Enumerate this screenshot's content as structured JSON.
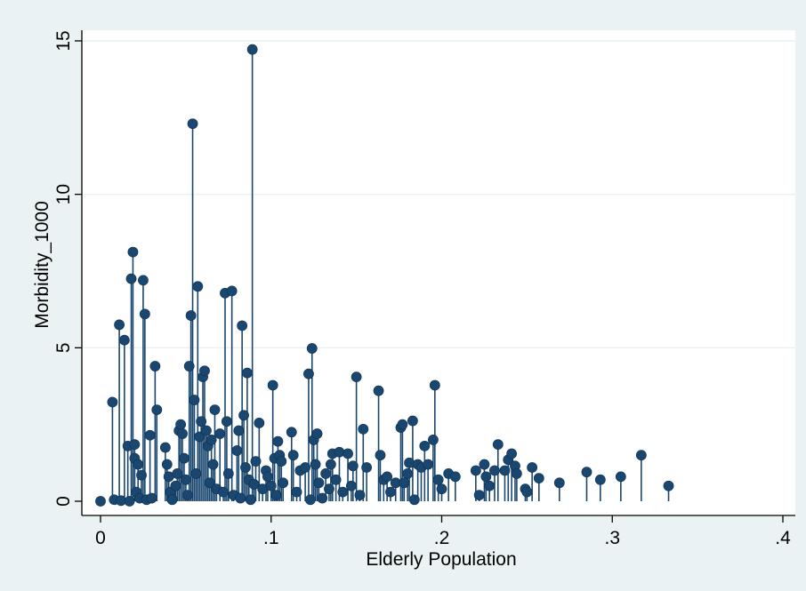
{
  "chart_data": {
    "type": "scatter",
    "style": "dropline",
    "title": "",
    "xlabel": "Elderly Population",
    "ylabel": "Morbidity_1000",
    "xlim": [
      0,
      0.4
    ],
    "ylim": [
      0,
      15
    ],
    "xticks": [
      {
        "value": 0,
        "label": "0"
      },
      {
        "value": 0.1,
        "label": ".1"
      },
      {
        "value": 0.2,
        "label": ".2"
      },
      {
        "value": 0.3,
        "label": ".3"
      },
      {
        "value": 0.4,
        "label": ".4"
      }
    ],
    "yticks": [
      {
        "value": 0,
        "label": "0"
      },
      {
        "value": 5,
        "label": "5"
      },
      {
        "value": 10,
        "label": "10"
      },
      {
        "value": 15,
        "label": "15"
      }
    ],
    "grid": true,
    "colors": {
      "marker": "#1a476f",
      "background": "#eaf2f3",
      "plot_background": "#ffffff",
      "grid": "#eaf2f3"
    },
    "points": [
      [
        0.0,
        0.0
      ],
      [
        0.007,
        3.23
      ],
      [
        0.008,
        0.05
      ],
      [
        0.011,
        5.75
      ],
      [
        0.012,
        0.02
      ],
      [
        0.014,
        5.25
      ],
      [
        0.016,
        1.8
      ],
      [
        0.017,
        0.0
      ],
      [
        0.018,
        7.25
      ],
      [
        0.019,
        8.12
      ],
      [
        0.02,
        1.85
      ],
      [
        0.02,
        1.4
      ],
      [
        0.021,
        0.3
      ],
      [
        0.022,
        1.2
      ],
      [
        0.023,
        0.1
      ],
      [
        0.024,
        0.85
      ],
      [
        0.025,
        7.2
      ],
      [
        0.026,
        6.1
      ],
      [
        0.027,
        0.05
      ],
      [
        0.029,
        2.15
      ],
      [
        0.03,
        0.1
      ],
      [
        0.032,
        4.4
      ],
      [
        0.033,
        2.98
      ],
      [
        0.038,
        1.75
      ],
      [
        0.039,
        1.2
      ],
      [
        0.04,
        0.8
      ],
      [
        0.041,
        0.3
      ],
      [
        0.042,
        0.05
      ],
      [
        0.044,
        0.5
      ],
      [
        0.045,
        0.9
      ],
      [
        0.046,
        2.3
      ],
      [
        0.047,
        2.5
      ],
      [
        0.048,
        2.2
      ],
      [
        0.049,
        1.4
      ],
      [
        0.05,
        0.7
      ],
      [
        0.051,
        0.2
      ],
      [
        0.052,
        4.4
      ],
      [
        0.053,
        6.05
      ],
      [
        0.054,
        12.3
      ],
      [
        0.055,
        3.3
      ],
      [
        0.056,
        0.9
      ],
      [
        0.057,
        7.0
      ],
      [
        0.058,
        2.1
      ],
      [
        0.059,
        2.6
      ],
      [
        0.06,
        4.05
      ],
      [
        0.061,
        4.25
      ],
      [
        0.062,
        2.3
      ],
      [
        0.063,
        1.8
      ],
      [
        0.064,
        0.6
      ],
      [
        0.065,
        2.0
      ],
      [
        0.066,
        1.2
      ],
      [
        0.067,
        2.98
      ],
      [
        0.068,
        0.4
      ],
      [
        0.07,
        2.2
      ],
      [
        0.072,
        0.3
      ],
      [
        0.073,
        6.78
      ],
      [
        0.074,
        2.6
      ],
      [
        0.075,
        0.9
      ],
      [
        0.077,
        6.85
      ],
      [
        0.078,
        0.2
      ],
      [
        0.08,
        1.65
      ],
      [
        0.081,
        2.3
      ],
      [
        0.082,
        0.1
      ],
      [
        0.083,
        5.72
      ],
      [
        0.084,
        2.8
      ],
      [
        0.085,
        1.1
      ],
      [
        0.086,
        4.18
      ],
      [
        0.087,
        0.7
      ],
      [
        0.088,
        0.05
      ],
      [
        0.089,
        14.72
      ],
      [
        0.09,
        0.55
      ],
      [
        0.091,
        1.3
      ],
      [
        0.093,
        2.55
      ],
      [
        0.095,
        0.4
      ],
      [
        0.097,
        1.0
      ],
      [
        0.098,
        0.8
      ],
      [
        0.1,
        0.5
      ],
      [
        0.101,
        3.78
      ],
      [
        0.102,
        1.4
      ],
      [
        0.103,
        0.2
      ],
      [
        0.104,
        1.95
      ],
      [
        0.105,
        1.5
      ],
      [
        0.106,
        1.3
      ],
      [
        0.107,
        0.6
      ],
      [
        0.112,
        2.25
      ],
      [
        0.113,
        1.5
      ],
      [
        0.115,
        0.3
      ],
      [
        0.117,
        1.0
      ],
      [
        0.12,
        1.1
      ],
      [
        0.122,
        4.15
      ],
      [
        0.123,
        0.05
      ],
      [
        0.124,
        4.98
      ],
      [
        0.125,
        2.0
      ],
      [
        0.126,
        1.2
      ],
      [
        0.127,
        2.2
      ],
      [
        0.128,
        0.6
      ],
      [
        0.13,
        0.1
      ],
      [
        0.132,
        0.9
      ],
      [
        0.134,
        0.4
      ],
      [
        0.135,
        1.2
      ],
      [
        0.136,
        1.55
      ],
      [
        0.138,
        0.7
      ],
      [
        0.14,
        1.6
      ],
      [
        0.142,
        0.3
      ],
      [
        0.145,
        1.55
      ],
      [
        0.147,
        0.5
      ],
      [
        0.148,
        1.15
      ],
      [
        0.15,
        4.05
      ],
      [
        0.152,
        0.2
      ],
      [
        0.154,
        2.35
      ],
      [
        0.156,
        1.1
      ],
      [
        0.163,
        3.6
      ],
      [
        0.164,
        1.5
      ],
      [
        0.166,
        0.7
      ],
      [
        0.168,
        0.8
      ],
      [
        0.17,
        0.3
      ],
      [
        0.173,
        0.6
      ],
      [
        0.176,
        2.4
      ],
      [
        0.177,
        2.5
      ],
      [
        0.178,
        0.6
      ],
      [
        0.18,
        0.9
      ],
      [
        0.181,
        1.25
      ],
      [
        0.183,
        2.62
      ],
      [
        0.184,
        0.05
      ],
      [
        0.186,
        1.2
      ],
      [
        0.188,
        1.1
      ],
      [
        0.19,
        1.8
      ],
      [
        0.192,
        1.2
      ],
      [
        0.195,
        2.0
      ],
      [
        0.196,
        3.78
      ],
      [
        0.198,
        0.7
      ],
      [
        0.2,
        0.4
      ],
      [
        0.204,
        0.9
      ],
      [
        0.208,
        0.8
      ],
      [
        0.22,
        1.0
      ],
      [
        0.222,
        0.2
      ],
      [
        0.225,
        1.2
      ],
      [
        0.226,
        0.8
      ],
      [
        0.228,
        0.5
      ],
      [
        0.231,
        1.0
      ],
      [
        0.233,
        1.85
      ],
      [
        0.237,
        1.0
      ],
      [
        0.239,
        1.35
      ],
      [
        0.241,
        1.55
      ],
      [
        0.243,
        1.15
      ],
      [
        0.244,
        0.9
      ],
      [
        0.249,
        0.4
      ],
      [
        0.25,
        0.3
      ],
      [
        0.253,
        1.1
      ],
      [
        0.257,
        0.75
      ],
      [
        0.269,
        0.6
      ],
      [
        0.285,
        0.95
      ],
      [
        0.293,
        0.7
      ],
      [
        0.305,
        0.8
      ],
      [
        0.317,
        1.5
      ],
      [
        0.333,
        0.5
      ]
    ]
  }
}
